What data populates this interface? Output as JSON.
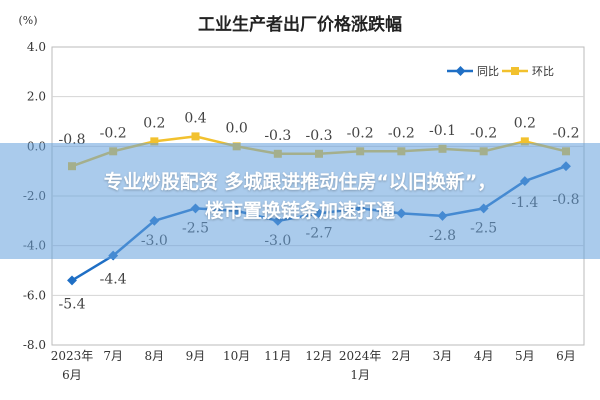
{
  "chart_data": {
    "type": "line",
    "title": "工业生产者出厂价格涨跌幅",
    "unit_label": "(%)",
    "categories": [
      [
        "2023年",
        "6月"
      ],
      [
        "7月"
      ],
      [
        "8月"
      ],
      [
        "9月"
      ],
      [
        "10月"
      ],
      [
        "11月"
      ],
      [
        "12月"
      ],
      [
        "2024年",
        "1月"
      ],
      [
        "2月"
      ],
      [
        "3月"
      ],
      [
        "4月"
      ],
      [
        "5月"
      ],
      [
        "6月"
      ]
    ],
    "ylim": [
      -8.0,
      4.0
    ],
    "yticks": [
      "4.0",
      "2.0",
      "0.0",
      "-2.0",
      "-4.0",
      "-6.0",
      "-8.0"
    ],
    "legend_position": "top-right",
    "series": [
      {
        "name": "同比",
        "color": "#1f6fc5",
        "values": [
          -5.4,
          -4.4,
          -3.0,
          -2.5,
          -2.6,
          -3.0,
          -2.7,
          -2.5,
          -2.7,
          -2.8,
          -2.5,
          -1.4,
          -0.8
        ],
        "labels": [
          "-5.4",
          "-4.4",
          "-3.0",
          "-2.5",
          "",
          "-3.0",
          "-2.7",
          "",
          "",
          "-2.8",
          "-2.5",
          "-1.4",
          "-0.8"
        ]
      },
      {
        "name": "环比",
        "color": "#f2c12e",
        "values": [
          -0.8,
          -0.2,
          0.2,
          0.4,
          0.0,
          -0.3,
          -0.3,
          -0.2,
          -0.2,
          -0.1,
          -0.2,
          0.2,
          -0.2
        ],
        "labels": [
          "-0.8",
          "-0.2",
          "0.2",
          "0.4",
          "0.0",
          "-0.3",
          "-0.3",
          "-0.2",
          "-0.2",
          "-0.1",
          "-0.2",
          "0.2",
          "-0.2"
        ]
      }
    ]
  },
  "overlay": {
    "line1": "专业炒股配资 多城跟进推动住房“以旧换新”，",
    "line2": "楼市置换链条加速打通"
  }
}
